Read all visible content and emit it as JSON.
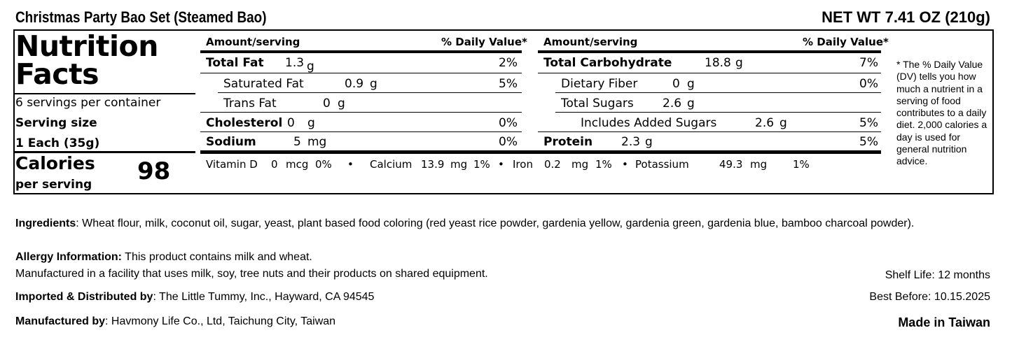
{
  "header": {
    "product_name": "Christmas Party Bao Set (Steamed Bao)",
    "net_weight": "NET WT 7.41 OZ (210g)"
  },
  "facts": {
    "title_line1": "Nutrition",
    "title_line2": "Facts",
    "servings_per_container": "6 servings per container",
    "serving_size_label": "Serving size",
    "serving_size_value": "1 Each (35g)",
    "calories_label": "Calories",
    "per_serving": "per serving",
    "calories_value": "98"
  },
  "columns": {
    "amount_header": "Amount/serving",
    "dv_header": "% Daily Value*"
  },
  "left_nutrients": [
    {
      "name": "Total Fat",
      "amount": "1.3",
      "unit": "g",
      "dv": "2%"
    },
    {
      "name": "Saturated Fat",
      "amount": "0.9",
      "unit": "g",
      "dv": "5%"
    },
    {
      "name": "Trans Fat",
      "amount": "0",
      "unit": "g",
      "dv": ""
    },
    {
      "name": "Cholesterol",
      "amount": "0",
      "unit": "g",
      "dv": "0%"
    },
    {
      "name": "Sodium",
      "amount": "5",
      "unit": "mg",
      "dv": "0%"
    }
  ],
  "right_nutrients": [
    {
      "name": "Total Carbohydrate",
      "amount": "18.8",
      "unit": "g",
      "dv": "7%"
    },
    {
      "name": "Dietary Fiber",
      "amount": "0",
      "unit": "g",
      "dv": "0%"
    },
    {
      "name": "Total Sugars",
      "amount": "2.6",
      "unit": "g",
      "dv": ""
    },
    {
      "name": "Includes Added Sugars",
      "amount": "2.6",
      "unit": "g",
      "dv": "5%"
    },
    {
      "name": "Protein",
      "amount": "2.3",
      "unit": "g",
      "dv": "5%"
    }
  ],
  "vitamins": [
    {
      "name": "Vitamin D",
      "amount": "0",
      "unit": "mcg",
      "dv": "0%"
    },
    {
      "name": "Calcium",
      "amount": "13.9",
      "unit": "mg",
      "dv": "1%"
    },
    {
      "name": "Iron",
      "amount": "0.2",
      "unit": "mg",
      "dv": "1%"
    },
    {
      "name": "Potassium",
      "amount": "49.3",
      "unit": "mg",
      "dv": "1%"
    }
  ],
  "vitamin_separator": "•",
  "dv_note": "* The % Daily Value (DV) tells you how much a nutrient in a serving of food contributes to a daily diet. 2,000 calories a day is used for general nutrition advice.",
  "info": {
    "ingredients_label": "Ingredients",
    "ingredients_text": ": Wheat flour, milk, coconut oil, sugar, yeast, plant based food coloring (red yeast rice powder,  gardenia yellow, gardenia green, gardenia blue, bamboo charcoal powder).",
    "allergy_label": "Allergy Information:",
    "allergy_text": " This product contains milk and wheat.",
    "facility_text": "Manufactured in a facility that uses milk, soy, tree nuts and their products on shared equipment.",
    "imported_label": "Imported & Distributed by",
    "imported_text": ": The Little Tummy, Inc., Hayward, CA 94545",
    "manufactured_label": "Manufactured by",
    "manufactured_text": ": Havmony Life Co., Ltd, Taichung City, Taiwan",
    "shelf_life": "Shelf Life: 12 months",
    "best_before": "Best Before: 10.15.2025",
    "made_in": "Made in Taiwan"
  }
}
